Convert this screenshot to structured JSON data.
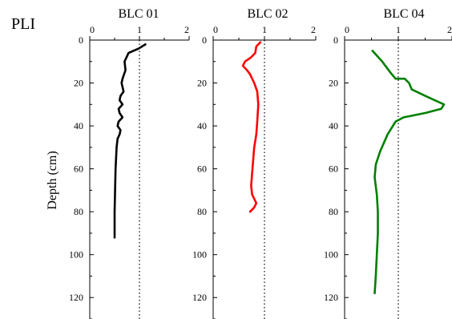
{
  "figure": {
    "prefix_label": "PLI",
    "ylabel": "Depth (cm)"
  },
  "chart_data": [
    {
      "type": "line",
      "title": "BLC 01",
      "xlabel": "",
      "ylabel": "Depth (cm)",
      "xlim": [
        0,
        2
      ],
      "xticks": [
        0,
        1,
        2
      ],
      "ylim": [
        0,
        130
      ],
      "yticks": [
        0,
        20,
        40,
        60,
        80,
        100,
        120
      ],
      "y_inverted": true,
      "reference_line_x": 1,
      "color": "#000000",
      "series": [
        {
          "x": [
            1.12,
            0.98,
            0.78,
            0.7,
            0.72,
            0.66,
            0.64,
            0.68,
            0.62,
            0.6,
            0.66,
            0.58,
            0.6,
            0.66,
            0.58,
            0.56,
            0.62,
            0.6,
            0.56,
            0.54,
            0.52,
            0.5,
            0.5
          ],
          "y": [
            2,
            4,
            6,
            10,
            14,
            18,
            20,
            24,
            26,
            28,
            30,
            32,
            34,
            36,
            38,
            40,
            42,
            44,
            46,
            50,
            60,
            80,
            92
          ]
        }
      ]
    },
    {
      "type": "line",
      "title": "BLC 02",
      "xlabel": "",
      "ylabel": "",
      "xlim": [
        0,
        2
      ],
      "xticks": [
        0,
        1,
        2
      ],
      "ylim": [
        0,
        130
      ],
      "yticks": [
        0,
        20,
        40,
        60,
        80,
        100,
        120
      ],
      "y_inverted": true,
      "reference_line_x": 1,
      "color": "#ff0000",
      "series": [
        {
          "x": [
            0.92,
            0.84,
            0.82,
            0.74,
            0.62,
            0.58,
            0.66,
            0.72,
            0.8,
            0.86,
            0.88,
            0.86,
            0.84,
            0.8,
            0.78,
            0.76,
            0.74,
            0.76,
            0.8,
            0.84,
            0.8,
            0.72
          ],
          "y": [
            1,
            3,
            6,
            8,
            10,
            12,
            14,
            16,
            20,
            24,
            30,
            38,
            44,
            50,
            56,
            62,
            68,
            72,
            74,
            76,
            78,
            80
          ]
        }
      ]
    },
    {
      "type": "line",
      "title": "BLC 04",
      "xlabel": "",
      "ylabel": "",
      "xlim": [
        0,
        2
      ],
      "xticks": [
        0,
        1,
        2
      ],
      "ylim": [
        0,
        130
      ],
      "yticks": [
        0,
        20,
        40,
        60,
        80,
        100,
        120
      ],
      "y_inverted": true,
      "reference_line_x": 1,
      "color": "#008000",
      "series": [
        {
          "x": [
            0.52,
            0.7,
            0.85,
            0.95,
            1.12,
            1.2,
            1.25,
            1.5,
            1.85,
            1.8,
            1.5,
            1.1,
            0.95,
            0.8,
            0.66,
            0.58,
            0.56,
            0.6,
            0.62,
            0.62,
            0.6,
            0.58,
            0.56
          ],
          "y": [
            5,
            10,
            15,
            18,
            18,
            20,
            23,
            26,
            30,
            32,
            34,
            36,
            38,
            44,
            52,
            58,
            64,
            72,
            80,
            90,
            100,
            110,
            118
          ]
        }
      ]
    }
  ]
}
